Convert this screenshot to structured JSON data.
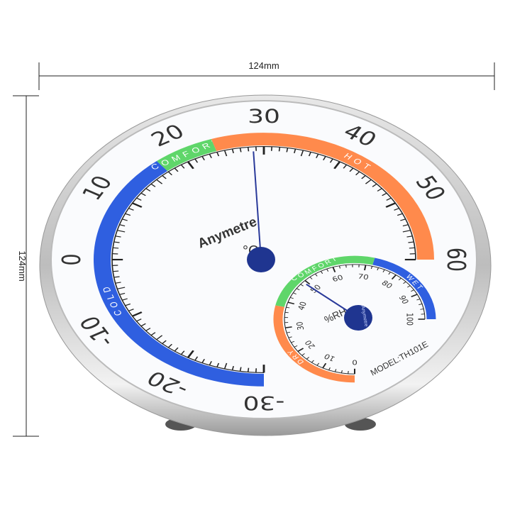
{
  "dimensions": {
    "width_label": "124mm",
    "height_label": "124mm"
  },
  "thermometer": {
    "brand": "Anymetre",
    "unit": "°C",
    "scale_labels": [
      "-30",
      "-20",
      "-10",
      "0",
      "10",
      "20",
      "30",
      "40",
      "50",
      "60"
    ],
    "scale_range": [
      -30,
      60
    ],
    "zones": [
      {
        "label": "COLD",
        "from": -30,
        "to": 17,
        "color": "#2f5fe0"
      },
      {
        "label": "COMFORT",
        "from": 17,
        "to": 24,
        "color": "#5fd66a"
      },
      {
        "label": "HOT",
        "from": 24,
        "to": 60,
        "color": "#ff8a4c"
      }
    ],
    "reading": 29
  },
  "hygrometer": {
    "unit": "%RH",
    "hub_text": "Anymetre",
    "scale_labels": [
      "0",
      "10",
      "20",
      "30",
      "40",
      "50",
      "60",
      "70",
      "80",
      "90",
      "100"
    ],
    "scale_range": [
      0,
      100
    ],
    "zones": [
      {
        "label": "DRY",
        "from": 0,
        "to": 38,
        "color": "#ff8a4c"
      },
      {
        "label": "COMFORT",
        "from": 38,
        "to": 72,
        "color": "#5fd66a"
      },
      {
        "label": "WET",
        "from": 72,
        "to": 100,
        "color": "#2f5fe0"
      }
    ],
    "reading": 48,
    "model": "MODEL:TH101E"
  },
  "colors": {
    "needle": "#2a3a9a",
    "hub": "#1f3590",
    "rim": "#c8c8c8",
    "face": "#f4f7fb"
  }
}
